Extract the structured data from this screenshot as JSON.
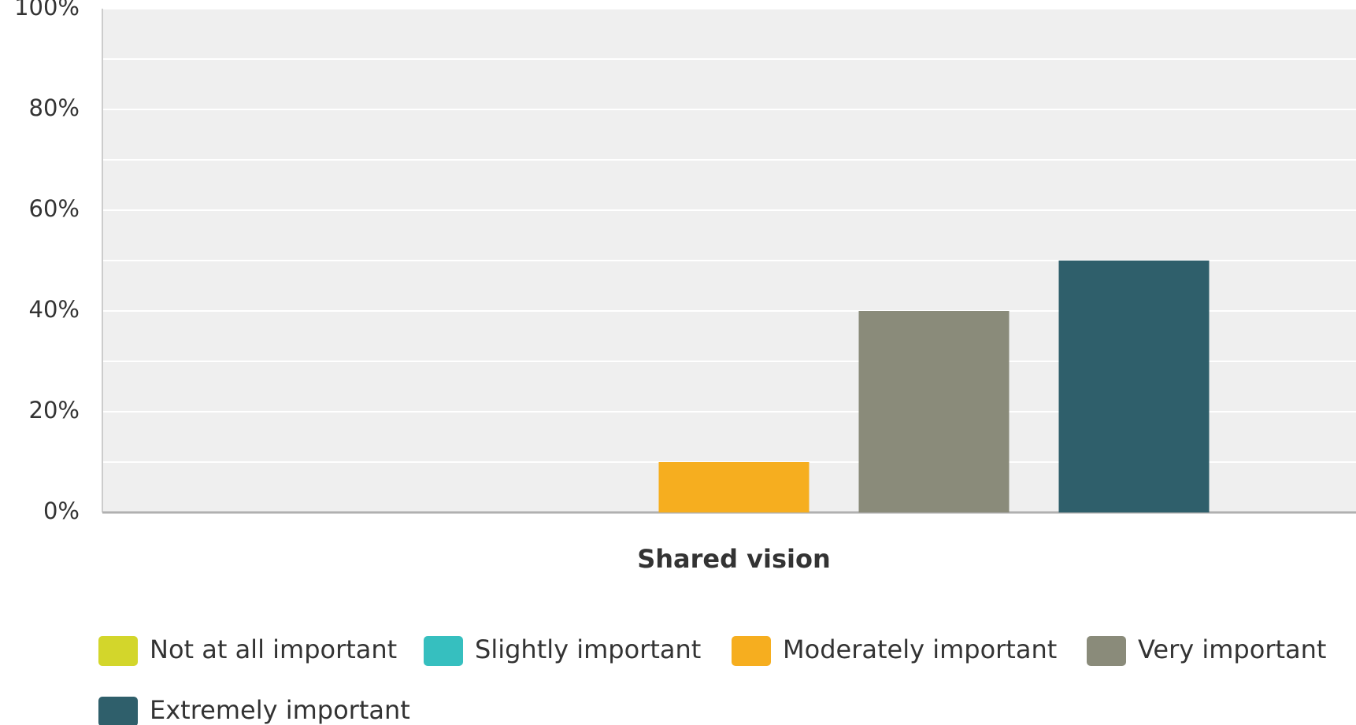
{
  "chart_data": {
    "type": "bar",
    "categories": [
      "Shared vision"
    ],
    "series": [
      {
        "name": "Not at all important",
        "color": "#d3d62b",
        "values": [
          0
        ]
      },
      {
        "name": "Slightly important",
        "color": "#36bfbf",
        "values": [
          0
        ]
      },
      {
        "name": "Moderately important",
        "color": "#f6ae1f",
        "values": [
          10
        ]
      },
      {
        "name": "Very important",
        "color": "#8a8b7a",
        "values": [
          40
        ]
      },
      {
        "name": "Extremely important",
        "color": "#2f5f6b",
        "values": [
          50
        ]
      }
    ],
    "ylim": [
      0,
      100
    ],
    "yticks": [
      {
        "value": 0,
        "label": "0%"
      },
      {
        "value": 20,
        "label": "20%"
      },
      {
        "value": 40,
        "label": "40%"
      },
      {
        "value": 60,
        "label": "60%"
      },
      {
        "value": 80,
        "label": "80%"
      },
      {
        "value": 100,
        "label": "100%"
      }
    ],
    "yminorticks": [
      10,
      30,
      50,
      70,
      90
    ],
    "grid": true,
    "legend": "bottom"
  }
}
